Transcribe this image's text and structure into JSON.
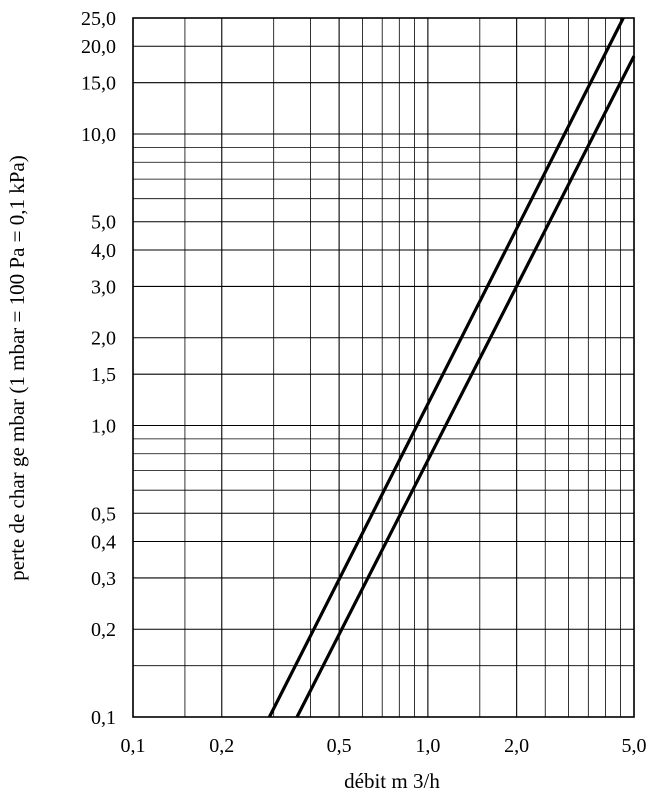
{
  "chart_data": {
    "type": "line",
    "xscale": "log",
    "yscale": "log",
    "xlim": [
      0.1,
      5.0
    ],
    "ylim": [
      0.1,
      25.0
    ],
    "grid": true,
    "xlabel": "débit m 3/h",
    "ylabel": "perte de char ge mbar (1 mbar = 100 Pa = 0,1 kPa)",
    "x_ticks": [
      {
        "value": 0.1,
        "label": "0,1"
      },
      {
        "value": 0.2,
        "label": "0,2"
      },
      {
        "value": 0.5,
        "label": "0,5"
      },
      {
        "value": 1.0,
        "label": "1,0"
      },
      {
        "value": 2.0,
        "label": "2,0"
      },
      {
        "value": 5.0,
        "label": "5,0"
      }
    ],
    "y_ticks": [
      {
        "value": 0.1,
        "label": "0,1"
      },
      {
        "value": 0.2,
        "label": "0,2"
      },
      {
        "value": 0.3,
        "label": "0,3"
      },
      {
        "value": 0.4,
        "label": "0,4"
      },
      {
        "value": 0.5,
        "label": "0,5"
      },
      {
        "value": 1.0,
        "label": "1,0"
      },
      {
        "value": 1.5,
        "label": "1,5"
      },
      {
        "value": 2.0,
        "label": "2,0"
      },
      {
        "value": 3.0,
        "label": "3,0"
      },
      {
        "value": 4.0,
        "label": "4,0"
      },
      {
        "value": 5.0,
        "label": "5,0"
      },
      {
        "value": 10.0,
        "label": "10,0"
      },
      {
        "value": 15.0,
        "label": "15,0"
      },
      {
        "value": 20.0,
        "label": "20,0"
      },
      {
        "value": 25.0,
        "label": "25,0"
      }
    ],
    "x_minor_grid": [
      0.15,
      0.3,
      0.4,
      0.6,
      0.7,
      0.8,
      0.9,
      1.5,
      2.5,
      3.0,
      3.5,
      4.0,
      4.5
    ],
    "y_minor_grid": [
      0.15,
      0.6,
      0.7,
      0.8,
      0.9,
      6.0,
      7.0,
      8.0,
      9.0
    ],
    "series": [
      {
        "points": [
          [
            0.29,
            0.1
          ],
          [
            4.6,
            25.0
          ]
        ]
      },
      {
        "points": [
          [
            0.36,
            0.1
          ],
          [
            5.0,
            18.5
          ]
        ]
      }
    ]
  }
}
